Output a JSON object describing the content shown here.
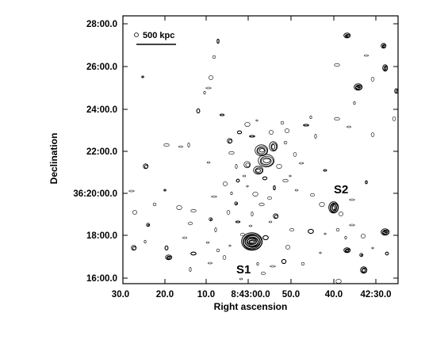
{
  "figure": {
    "xlabel": "Right ascension",
    "ylabel": "Declination",
    "x_ticks": [
      "30.0",
      "20.0",
      "10.0",
      "8:43:00.0",
      "50.0",
      "40.0",
      "42:30.0"
    ],
    "y_ticks": [
      "28:00.0",
      "26:00.0",
      "24:00.0",
      "22:00.0",
      "36:20:00.0",
      "18:00.0",
      "16:00.0"
    ],
    "scale_bar_label": "500 kpc",
    "source_labels": [
      "S1",
      "S2"
    ],
    "contour_color": "#000000"
  }
}
